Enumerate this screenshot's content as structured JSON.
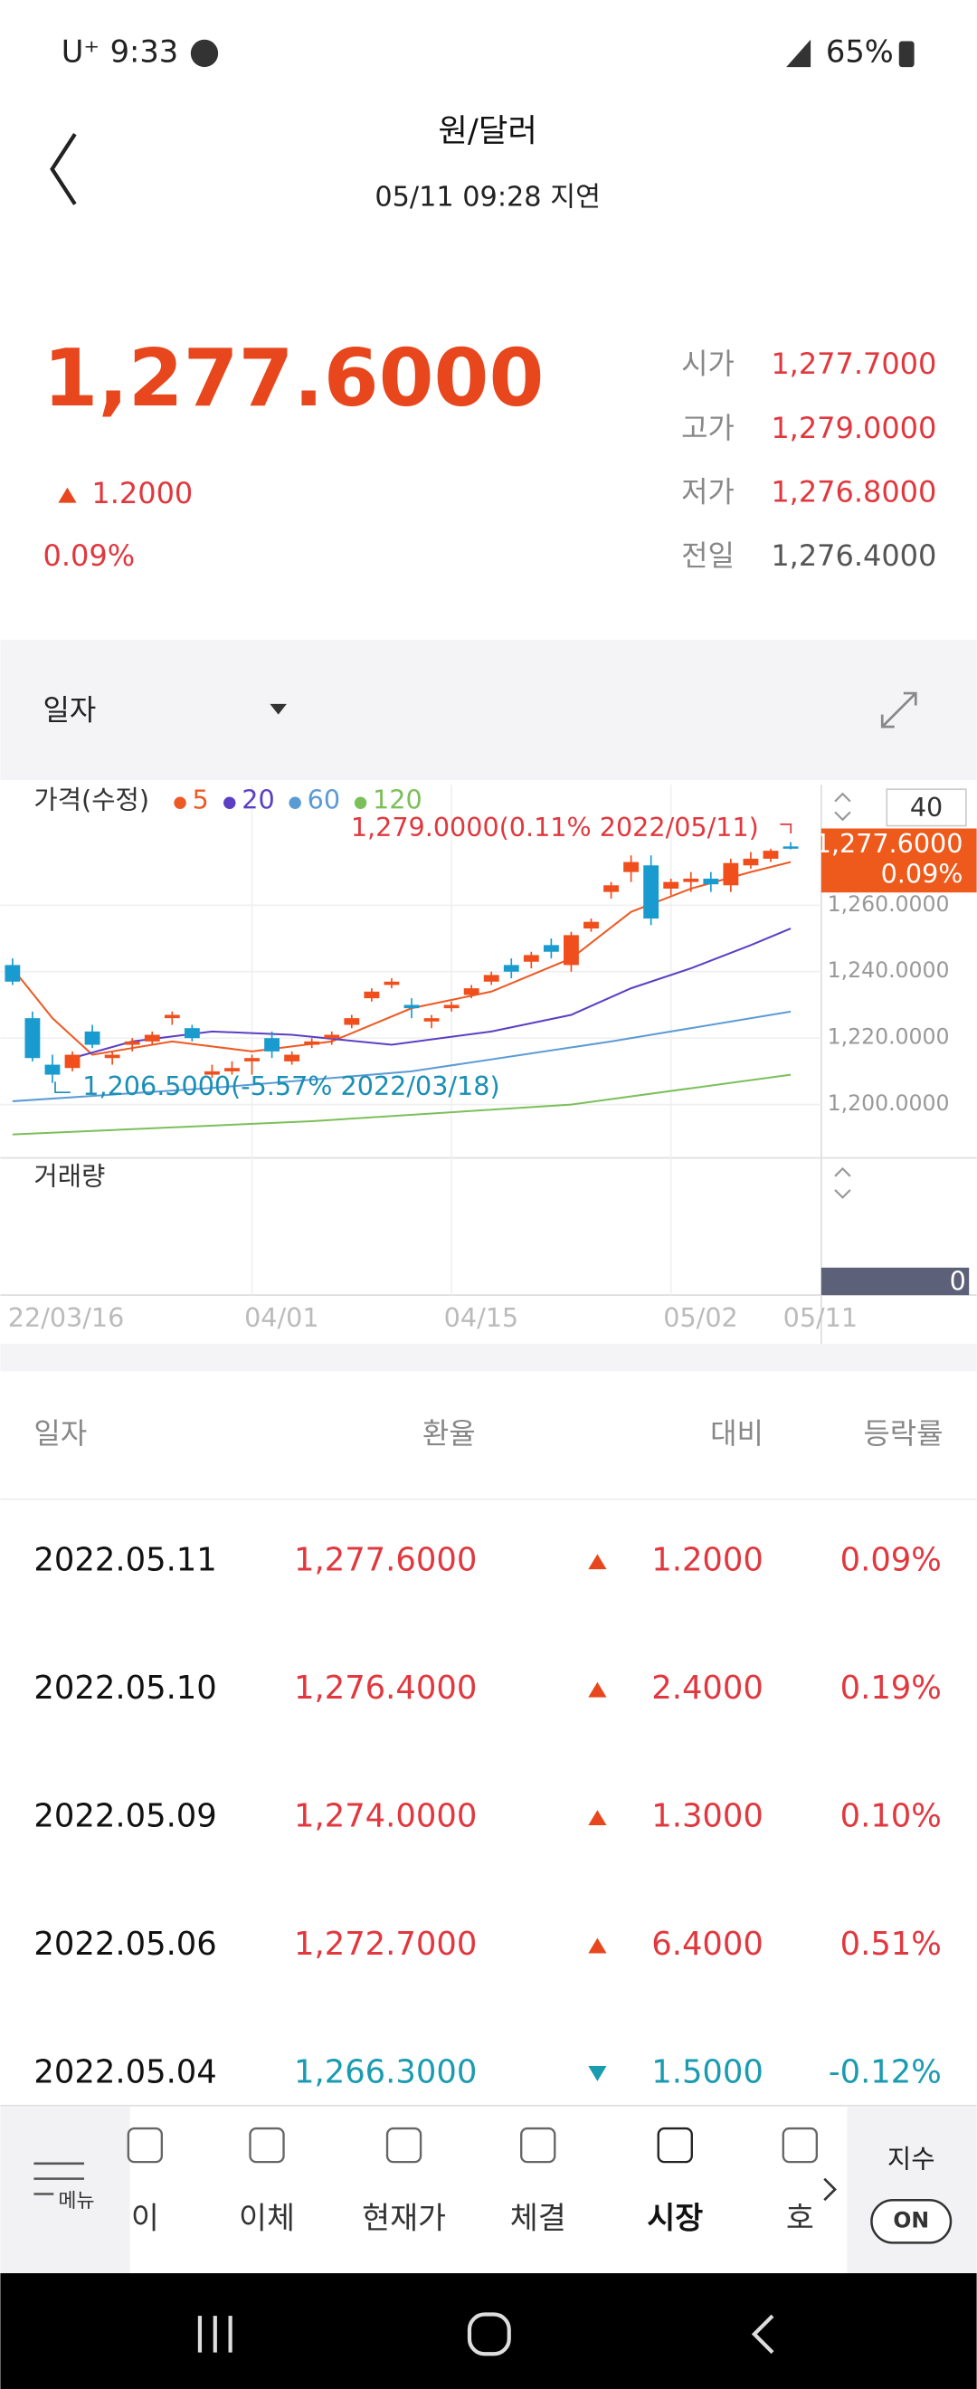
{
  "status": {
    "carrier": "U⁺",
    "time": "9:33",
    "battery": "65%"
  },
  "header": {
    "title": "원/달러",
    "subtitle": "05/11 09:28 지연"
  },
  "quote": {
    "price": "1,277.6000",
    "change": "1.2000",
    "change_pct": "0.09%",
    "stats": [
      {
        "label": "시가",
        "value": "1,277.7000"
      },
      {
        "label": "고가",
        "value": "1,279.0000"
      },
      {
        "label": "저가",
        "value": "1,276.8000"
      },
      {
        "label": "전일",
        "value": "1,276.4000"
      }
    ]
  },
  "period": {
    "label": "일자"
  },
  "chart": {
    "type": "candlestick",
    "legend_title": "가격(수정)",
    "ma": [
      {
        "name": "5",
        "color": "#ee5a24",
        "points": [
          [
            0,
            1241
          ],
          [
            2,
            1226
          ],
          [
            4,
            1215
          ],
          [
            8,
            1219
          ],
          [
            12,
            1216
          ],
          [
            16,
            1219
          ],
          [
            20,
            1229
          ],
          [
            24,
            1234
          ],
          [
            28,
            1244
          ],
          [
            31,
            1258
          ],
          [
            34,
            1265
          ],
          [
            37,
            1270
          ],
          [
            39,
            1273
          ]
        ]
      },
      {
        "name": "20",
        "color": "#5b3fc4",
        "points": [
          [
            3,
            1214
          ],
          [
            6,
            1219
          ],
          [
            10,
            1222
          ],
          [
            14,
            1221
          ],
          [
            19,
            1218
          ],
          [
            24,
            1222
          ],
          [
            28,
            1227
          ],
          [
            31,
            1235
          ],
          [
            34,
            1241
          ],
          [
            37,
            1248
          ],
          [
            39,
            1253
          ]
        ]
      },
      {
        "name": "60",
        "color": "#5b9bd5",
        "points": [
          [
            0,
            1201
          ],
          [
            10,
            1205
          ],
          [
            20,
            1210
          ],
          [
            30,
            1219
          ],
          [
            39,
            1228
          ]
        ]
      },
      {
        "name": "120",
        "color": "#7cbf5a",
        "points": [
          [
            0,
            1191
          ],
          [
            15,
            1195
          ],
          [
            28,
            1200
          ],
          [
            39,
            1209
          ]
        ]
      }
    ],
    "up_color": "#f04e1c",
    "down_color": "#1a9bd0",
    "candles": [
      [
        1242,
        1244,
        1236,
        1237
      ],
      [
        1226,
        1228,
        1213,
        1214
      ],
      [
        1212,
        1215,
        1206.5,
        1209
      ],
      [
        1211,
        1216,
        1210,
        1215
      ],
      [
        1222,
        1224,
        1217,
        1218
      ],
      [
        1214,
        1216,
        1212,
        1215
      ],
      [
        1218,
        1220,
        1216,
        1219
      ],
      [
        1219,
        1222,
        1218,
        1221
      ],
      [
        1226,
        1228,
        1224,
        1227
      ],
      [
        1223,
        1224,
        1219,
        1220
      ],
      [
        1209,
        1212,
        1208,
        1210
      ],
      [
        1210,
        1213,
        1209,
        1211
      ],
      [
        1213,
        1215,
        1209,
        1214
      ],
      [
        1220,
        1222,
        1214,
        1216
      ],
      [
        1213,
        1216,
        1212,
        1215
      ],
      [
        1218,
        1220,
        1217,
        1219
      ],
      [
        1220,
        1222,
        1218,
        1221
      ],
      [
        1224,
        1227,
        1223,
        1226
      ],
      [
        1232,
        1235,
        1231,
        1234
      ],
      [
        1236,
        1238,
        1235,
        1237
      ],
      [
        1230,
        1232,
        1226,
        1229
      ],
      [
        1225,
        1227,
        1223,
        1226
      ],
      [
        1229,
        1231,
        1228,
        1230
      ],
      [
        1233,
        1236,
        1232,
        1235
      ],
      [
        1237,
        1240,
        1236,
        1239
      ],
      [
        1242,
        1244,
        1238,
        1240
      ],
      [
        1243,
        1246,
        1241,
        1245
      ],
      [
        1248,
        1250,
        1244,
        1246
      ],
      [
        1242,
        1252,
        1240,
        1251
      ],
      [
        1253,
        1256,
        1252,
        1255
      ],
      [
        1264,
        1267,
        1262,
        1266
      ],
      [
        1270,
        1275,
        1267,
        1273
      ],
      [
        1272,
        1275,
        1254,
        1256
      ],
      [
        1265,
        1268,
        1263,
        1267
      ],
      [
        1267,
        1270,
        1264,
        1268
      ],
      [
        1268,
        1270,
        1264,
        1266.3
      ],
      [
        1266,
        1274,
        1264,
        1272.7
      ],
      [
        1272,
        1276,
        1271,
        1274
      ],
      [
        1274,
        1277,
        1273,
        1276.4
      ],
      [
        1277.7,
        1279,
        1276.8,
        1277.6
      ]
    ],
    "ylim": [
      1186,
      1294
    ],
    "yticks": [
      {
        "value": 1200,
        "label": "1,200.0000"
      },
      {
        "value": 1220,
        "label": "1,220.0000"
      },
      {
        "value": 1240,
        "label": "1,240.0000"
      },
      {
        "value": 1260,
        "label": "1,260.0000"
      }
    ],
    "xticks": [
      {
        "value": 0,
        "label": "22/03/16"
      },
      {
        "value": 12,
        "label": "04/01"
      },
      {
        "value": 22,
        "label": "04/15"
      },
      {
        "value": 33,
        "label": "05/02"
      },
      {
        "value": 39,
        "label": "05/11"
      }
    ],
    "high_note": "1,279.0000(0.11% 2022/05/11)",
    "low_note": "1,206.5000(-5.57% 2022/03/18)",
    "last_price": {
      "value": 1277.6,
      "label": "1,277.6000",
      "pct": "0.09%"
    },
    "scale_box": "40",
    "volume_label": "거래량",
    "volume_value": 0
  },
  "table": {
    "columns": [
      "일자",
      "환율",
      "대비",
      "등락률"
    ],
    "rows": [
      {
        "date": "2022.05.11",
        "rate": "1,277.6000",
        "change": "1.2000",
        "pct": "0.09%",
        "direction": "up"
      },
      {
        "date": "2022.05.10",
        "rate": "1,276.4000",
        "change": "2.4000",
        "pct": "0.19%",
        "direction": "up"
      },
      {
        "date": "2022.05.09",
        "rate": "1,274.0000",
        "change": "1.3000",
        "pct": "0.10%",
        "direction": "up"
      },
      {
        "date": "2022.05.06",
        "rate": "1,272.7000",
        "change": "6.4000",
        "pct": "0.51%",
        "direction": "up"
      },
      {
        "date": "2022.05.04",
        "rate": "1,266.3000",
        "change": "1.5000",
        "pct": "-0.12%",
        "direction": "down"
      }
    ]
  },
  "nav": {
    "items": [
      "이",
      "이체",
      "현재가",
      "체결",
      "시장",
      "호"
    ],
    "active": 4,
    "menu": "메뉴",
    "index_label": "지수",
    "index_toggle": "ON"
  }
}
